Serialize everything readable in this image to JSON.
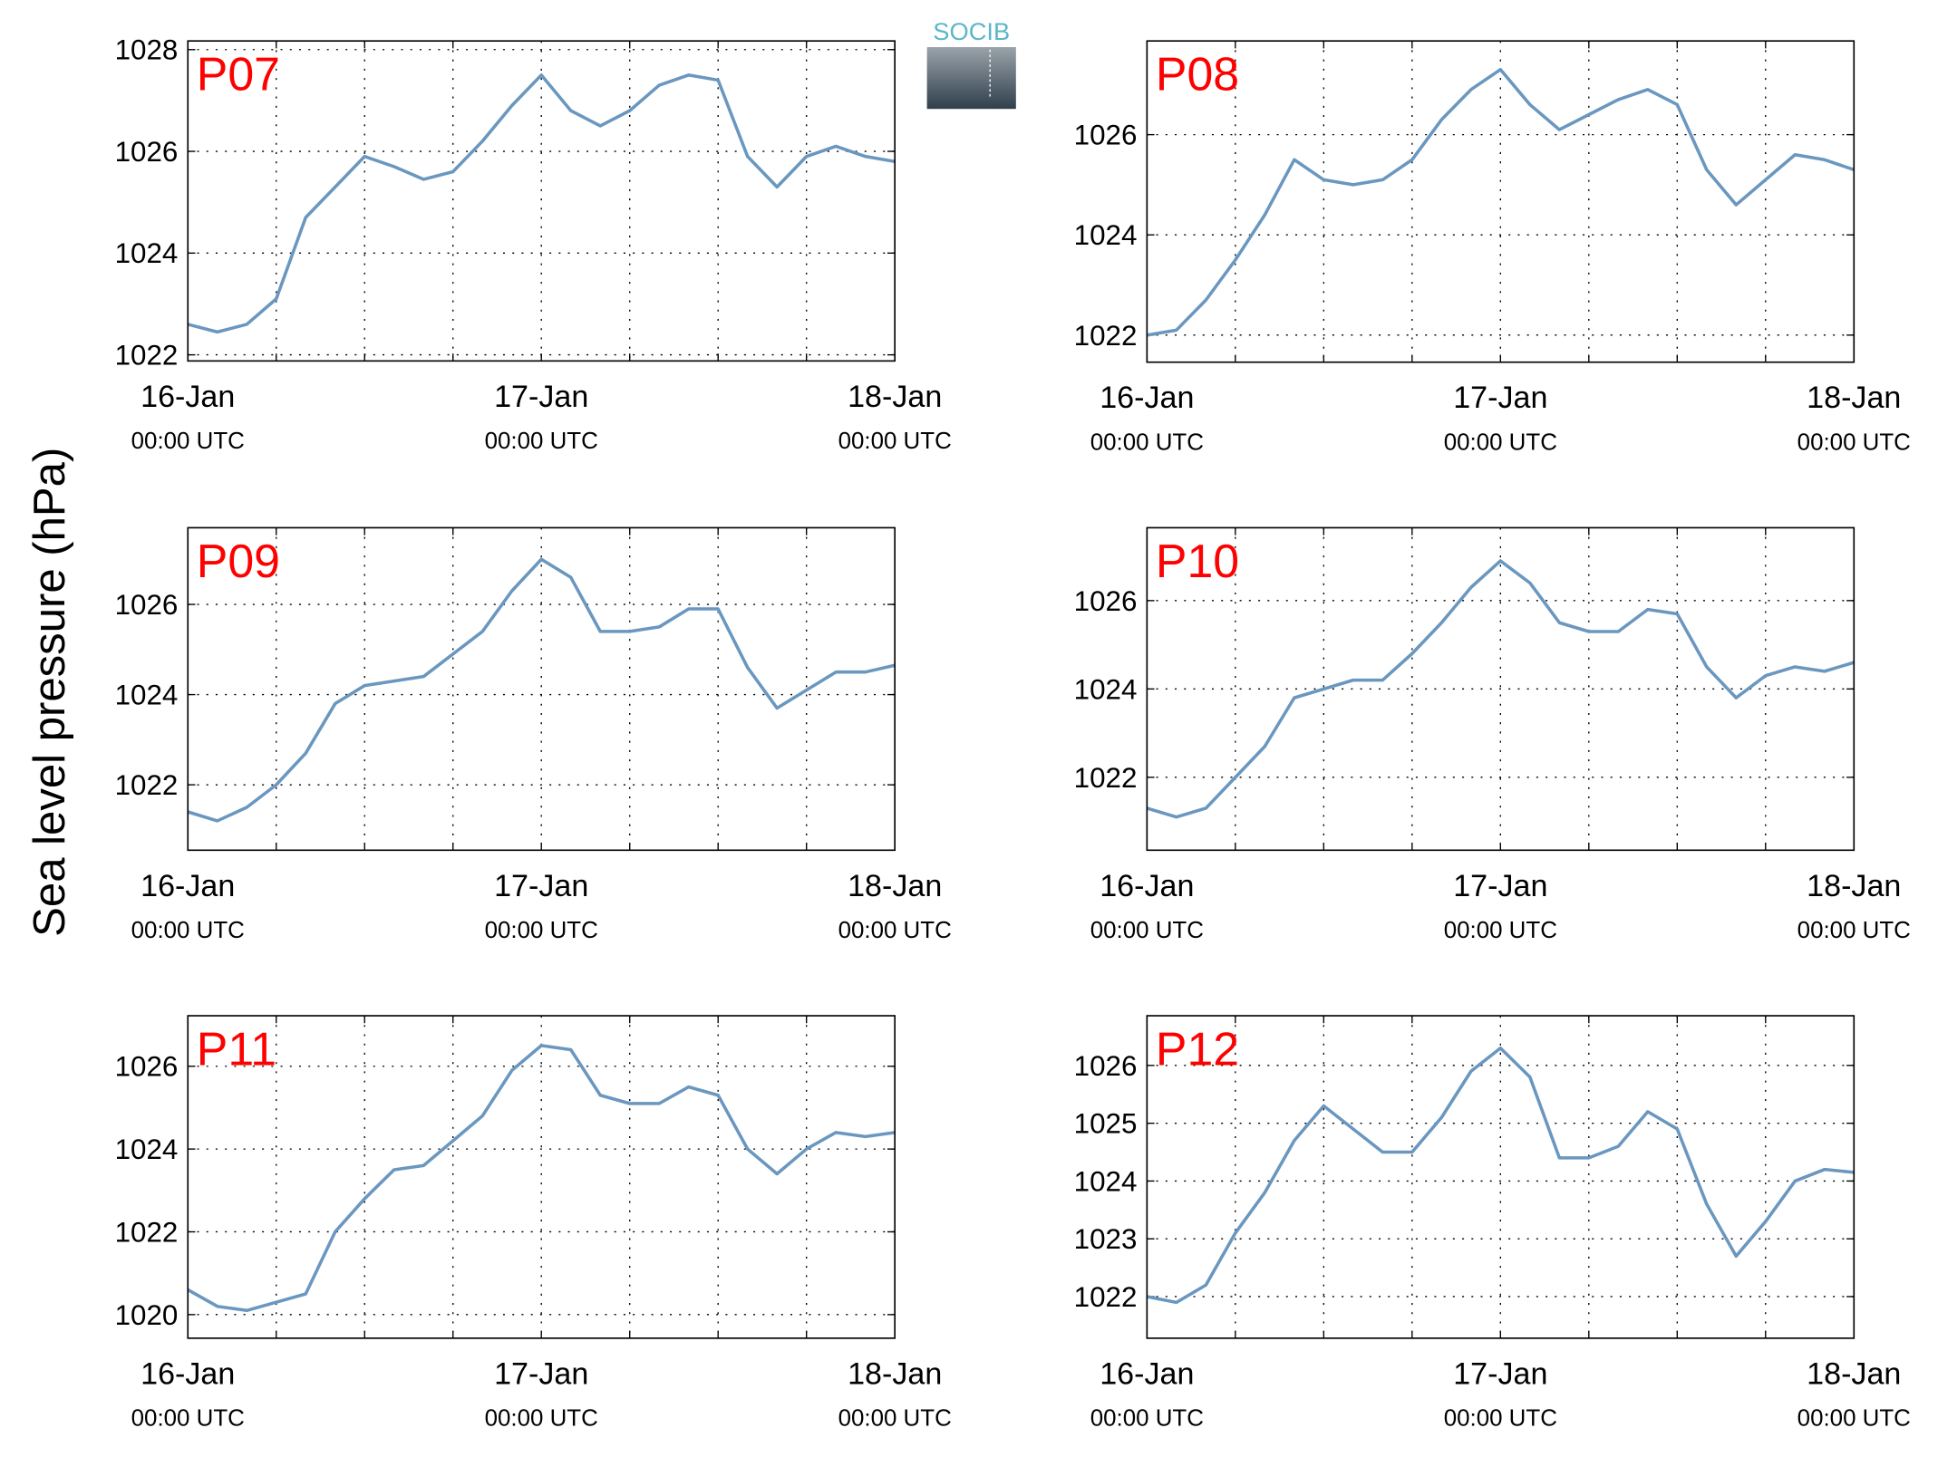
{
  "figure_ylabel": "Sea level pressure (hPa)",
  "logo": "SOCIB",
  "chart_data": [
    {
      "type": "line",
      "title": "P07",
      "color": "#6a97bf",
      "grid": true,
      "x": [
        0,
        2,
        4,
        6,
        8,
        10,
        12,
        14,
        16,
        18,
        20,
        22,
        24,
        26,
        28,
        30,
        32,
        34,
        36,
        38,
        40,
        42,
        44,
        46,
        48
      ],
      "series": [
        {
          "values": [
            1022.6,
            1022.45,
            1022.6,
            1023.1,
            1024.7,
            1025.3,
            1025.9,
            1025.7,
            1025.45,
            1025.6,
            1026.2,
            1026.9,
            1027.5,
            1026.8,
            1026.5,
            1026.8,
            1027.3,
            1027.5,
            1027.4,
            1025.9,
            1025.3,
            1025.9,
            1026.1,
            1025.9,
            1025.8
          ]
        }
      ],
      "xlim": [
        0,
        48
      ],
      "xticks": [
        {
          "value": 0,
          "label": "16-Jan\n00:00 UTC"
        },
        {
          "value": 24,
          "label": "17-Jan\n00:00 UTC"
        },
        {
          "value": 48,
          "label": "18-Jan\n00:00 UTC"
        }
      ],
      "xminor": [
        6,
        12,
        18,
        30,
        36,
        42
      ],
      "ylim": [
        1021.88,
        1028.17
      ],
      "yticks": [
        1022,
        1024,
        1026,
        1028
      ]
    },
    {
      "type": "line",
      "title": "P08",
      "color": "#6a97bf",
      "grid": true,
      "x": [
        0,
        2,
        4,
        6,
        8,
        10,
        12,
        14,
        16,
        18,
        20,
        22,
        24,
        26,
        28,
        30,
        32,
        34,
        36,
        38,
        40,
        42,
        44,
        46,
        48
      ],
      "series": [
        {
          "values": [
            1022.0,
            1022.1,
            1022.7,
            1023.5,
            1024.4,
            1025.5,
            1025.1,
            1025.0,
            1025.1,
            1025.5,
            1026.3,
            1026.9,
            1027.3,
            1026.6,
            1026.1,
            1026.4,
            1026.7,
            1026.9,
            1026.6,
            1025.3,
            1024.6,
            1025.1,
            1025.6,
            1025.5,
            1025.3
          ]
        }
      ],
      "xlim": [
        0,
        48
      ],
      "xticks": [
        {
          "value": 0,
          "label": "16-Jan\n00:00 UTC"
        },
        {
          "value": 24,
          "label": "17-Jan\n00:00 UTC"
        },
        {
          "value": 48,
          "label": "18-Jan\n00:00 UTC"
        }
      ],
      "xminor": [
        6,
        12,
        18,
        30,
        36,
        42
      ],
      "ylim": [
        1021.46,
        1027.87
      ],
      "yticks": [
        1022,
        1024,
        1026
      ]
    },
    {
      "type": "line",
      "title": "P09",
      "color": "#6a97bf",
      "grid": true,
      "x": [
        0,
        2,
        4,
        6,
        8,
        10,
        12,
        14,
        16,
        18,
        20,
        22,
        24,
        26,
        28,
        30,
        32,
        34,
        36,
        38,
        40,
        42,
        44,
        46,
        48
      ],
      "series": [
        {
          "values": [
            1021.4,
            1021.2,
            1021.5,
            1022.0,
            1022.7,
            1023.8,
            1024.2,
            1024.3,
            1024.4,
            1024.9,
            1025.4,
            1026.3,
            1027.0,
            1026.6,
            1025.4,
            1025.4,
            1025.5,
            1025.9,
            1025.9,
            1024.6,
            1023.7,
            1024.1,
            1024.5,
            1024.5,
            1024.65
          ]
        }
      ],
      "xlim": [
        0,
        48
      ],
      "xticks": [
        {
          "value": 0,
          "label": "16-Jan\n00:00 UTC"
        },
        {
          "value": 24,
          "label": "17-Jan\n00:00 UTC"
        },
        {
          "value": 48,
          "label": "18-Jan\n00:00 UTC"
        }
      ],
      "xminor": [
        6,
        12,
        18,
        30,
        36,
        42
      ],
      "ylim": [
        1020.55,
        1027.7
      ],
      "yticks": [
        1022,
        1024,
        1026
      ]
    },
    {
      "type": "line",
      "title": "P10",
      "color": "#6a97bf",
      "grid": true,
      "x": [
        0,
        2,
        4,
        6,
        8,
        10,
        12,
        14,
        16,
        18,
        20,
        22,
        24,
        26,
        28,
        30,
        32,
        34,
        36,
        38,
        40,
        42,
        44,
        46,
        48
      ],
      "series": [
        {
          "values": [
            1021.3,
            1021.1,
            1021.3,
            1022.0,
            1022.7,
            1023.8,
            1024.0,
            1024.2,
            1024.2,
            1024.8,
            1025.5,
            1026.3,
            1026.9,
            1026.4,
            1025.5,
            1025.3,
            1025.3,
            1025.8,
            1025.7,
            1024.5,
            1023.8,
            1024.3,
            1024.5,
            1024.4,
            1024.6
          ]
        }
      ],
      "xlim": [
        0,
        48
      ],
      "xticks": [
        {
          "value": 0,
          "label": "16-Jan\n00:00 UTC"
        },
        {
          "value": 24,
          "label": "17-Jan\n00:00 UTC"
        },
        {
          "value": 48,
          "label": "18-Jan\n00:00 UTC"
        }
      ],
      "xminor": [
        6,
        12,
        18,
        30,
        36,
        42
      ],
      "ylim": [
        1020.35,
        1027.65
      ],
      "yticks": [
        1022,
        1024,
        1026
      ]
    },
    {
      "type": "line",
      "title": "P11",
      "color": "#6a97bf",
      "grid": true,
      "x": [
        0,
        2,
        4,
        6,
        8,
        10,
        12,
        14,
        16,
        18,
        20,
        22,
        24,
        26,
        28,
        30,
        32,
        34,
        36,
        38,
        40,
        42,
        44,
        46,
        48
      ],
      "series": [
        {
          "values": [
            1020.6,
            1020.2,
            1020.1,
            1020.3,
            1020.5,
            1022.0,
            1022.8,
            1023.5,
            1023.6,
            1024.2,
            1024.8,
            1025.9,
            1026.5,
            1026.4,
            1025.3,
            1025.1,
            1025.1,
            1025.5,
            1025.3,
            1024.0,
            1023.4,
            1024.0,
            1024.4,
            1024.3,
            1024.4
          ]
        }
      ],
      "xlim": [
        0,
        48
      ],
      "xticks": [
        {
          "value": 0,
          "label": "16-Jan\n00:00 UTC"
        },
        {
          "value": 24,
          "label": "17-Jan\n00:00 UTC"
        },
        {
          "value": 48,
          "label": "18-Jan\n00:00 UTC"
        }
      ],
      "xminor": [
        6,
        12,
        18,
        30,
        36,
        42
      ],
      "ylim": [
        1019.43,
        1027.22
      ],
      "yticks": [
        1020,
        1022,
        1024,
        1026
      ]
    },
    {
      "type": "line",
      "title": "P12",
      "color": "#6a97bf",
      "grid": true,
      "x": [
        0,
        2,
        4,
        6,
        8,
        10,
        12,
        14,
        16,
        18,
        20,
        22,
        24,
        26,
        28,
        30,
        32,
        34,
        36,
        38,
        40,
        42,
        44,
        46,
        48
      ],
      "series": [
        {
          "values": [
            1022.0,
            1021.9,
            1022.2,
            1023.1,
            1023.8,
            1024.7,
            1025.3,
            1024.9,
            1024.5,
            1024.5,
            1025.1,
            1025.9,
            1026.3,
            1025.8,
            1024.4,
            1024.4,
            1024.6,
            1025.2,
            1024.9,
            1023.6,
            1022.7,
            1023.3,
            1024.0,
            1024.2,
            1024.15
          ]
        }
      ],
      "xlim": [
        0,
        48
      ],
      "xticks": [
        {
          "value": 0,
          "label": "16-Jan\n00:00 UTC"
        },
        {
          "value": 24,
          "label": "17-Jan\n00:00 UTC"
        },
        {
          "value": 48,
          "label": "18-Jan\n00:00 UTC"
        }
      ],
      "xminor": [
        6,
        12,
        18,
        30,
        36,
        42
      ],
      "ylim": [
        1021.28,
        1026.86
      ],
      "yticks": [
        1022,
        1023,
        1024,
        1025,
        1026
      ]
    }
  ]
}
